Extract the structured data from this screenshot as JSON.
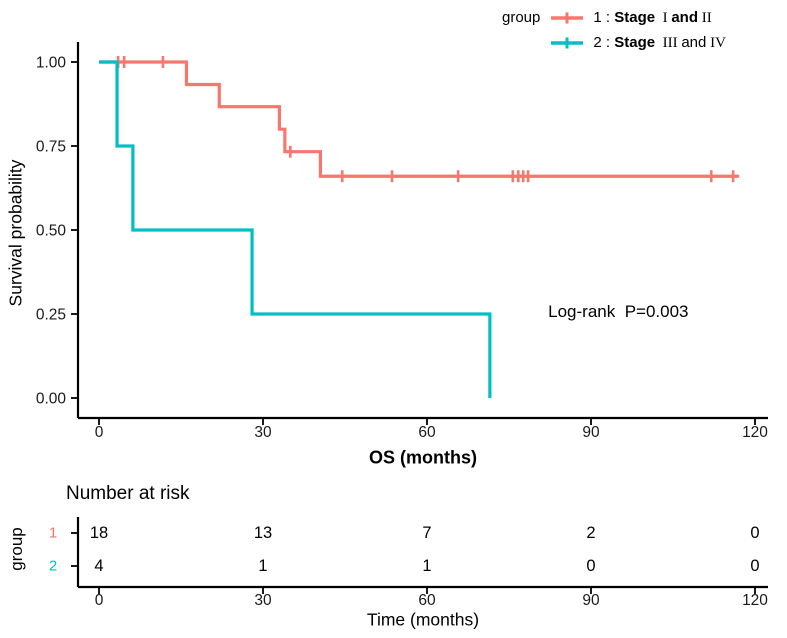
{
  "figure": {
    "background": "#ffffff"
  },
  "legend": {
    "title": "group",
    "items": [
      {
        "label_plain": "1 : Stage I and II",
        "color": "#F8766D",
        "segments": [
          {
            "text": "1 : "
          },
          {
            "text": "Stage",
            "bold": true
          },
          {
            "text": "  I ",
            "serif": true
          },
          {
            "text": "and",
            "bold": true
          },
          {
            "text": " II",
            "serif": true
          }
        ]
      },
      {
        "label_plain": "2 : Stage III and IV",
        "color": "#00BFC4",
        "segments": [
          {
            "text": "2 : "
          },
          {
            "text": "Stage",
            "bold": true
          },
          {
            "text": "  III ",
            "serif": true
          },
          {
            "text": "and"
          },
          {
            "text": " IV",
            "serif": true
          }
        ]
      }
    ]
  },
  "chart_data": {
    "type": "line",
    "variant": "kaplan-meier-step",
    "title": "",
    "xlabel": "OS (months)",
    "ylabel": "Survival probability",
    "xlim": [
      0,
      120
    ],
    "ylim": [
      0,
      1
    ],
    "xticks": [
      0,
      30,
      60,
      90,
      120
    ],
    "ytick_values": [
      0,
      0.25,
      0.5,
      0.75,
      1
    ],
    "ytick_labels": [
      "0.00",
      "0.25",
      "0.50",
      "0.75",
      "1.00"
    ],
    "grid": false,
    "legend_position": "top-right",
    "annotations": [
      {
        "text": "Log-rank  P=0.003",
        "x_months": 95,
        "y_prob": 0.255
      }
    ],
    "series": [
      {
        "name": "1 : Stage I and II",
        "color": "#F8766D",
        "n": 18,
        "steps": [
          [
            0,
            1.0
          ],
          [
            16,
            0.933
          ],
          [
            22,
            0.867
          ],
          [
            33,
            0.8
          ],
          [
            34,
            0.733
          ],
          [
            40.5,
            0.66
          ]
        ],
        "end_time": 117,
        "censors": [
          [
            3.5,
            1.0
          ],
          [
            4.6,
            1.0
          ],
          [
            11.7,
            1.0
          ],
          [
            35,
            0.733
          ],
          [
            44.5,
            0.66
          ],
          [
            53.6,
            0.66
          ],
          [
            65.7,
            0.66
          ],
          [
            75.7,
            0.66
          ],
          [
            76.7,
            0.66
          ],
          [
            77.6,
            0.66
          ],
          [
            78.5,
            0.66
          ],
          [
            112,
            0.66
          ],
          [
            116,
            0.66
          ]
        ]
      },
      {
        "name": "2 : Stage III and IV",
        "color": "#00BFC4",
        "n": 4,
        "steps": [
          [
            0,
            1.0
          ],
          [
            3.3,
            0.75
          ],
          [
            6.2,
            0.5
          ],
          [
            28,
            0.25
          ],
          [
            71.5,
            0.0
          ]
        ],
        "end_time": 71.5,
        "censors": []
      }
    ]
  },
  "risk_table": {
    "title": "Number at risk",
    "ylabel": "group",
    "xlabel": "Time (months)",
    "time_ticks": [
      0,
      30,
      60,
      90,
      120
    ],
    "rows": [
      {
        "label": "1",
        "color": "#F8766D",
        "values": [
          18,
          13,
          7,
          2,
          0
        ]
      },
      {
        "label": "2",
        "color": "#00BFC4",
        "values": [
          4,
          1,
          1,
          0,
          0
        ]
      }
    ]
  }
}
